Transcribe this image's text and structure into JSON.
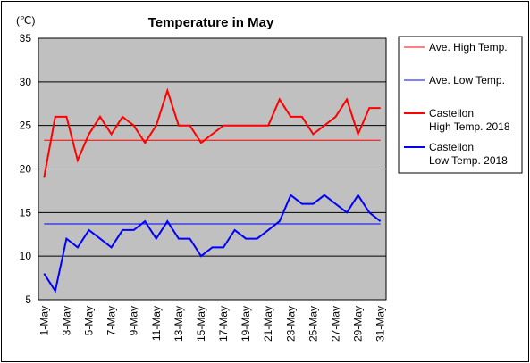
{
  "chart_data": {
    "type": "line",
    "title": "Temperature in May",
    "unit_label": "(℃)",
    "ylim": [
      5,
      35
    ],
    "yticks": [
      5,
      10,
      15,
      20,
      25,
      30,
      35
    ],
    "grid": true,
    "background_color": "#c0c0c0",
    "x": [
      "1-May",
      "2-May",
      "3-May",
      "4-May",
      "5-May",
      "6-May",
      "7-May",
      "8-May",
      "9-May",
      "10-May",
      "11-May",
      "12-May",
      "13-May",
      "14-May",
      "15-May",
      "16-May",
      "17-May",
      "18-May",
      "19-May",
      "20-May",
      "21-May",
      "22-May",
      "23-May",
      "24-May",
      "25-May",
      "26-May",
      "27-May",
      "28-May",
      "29-May",
      "30-May",
      "31-May"
    ],
    "xtick_labels": [
      "1-May",
      "3-May",
      "5-May",
      "7-May",
      "9-May",
      "11-May",
      "13-May",
      "15-May",
      "17-May",
      "19-May",
      "21-May",
      "23-May",
      "25-May",
      "27-May",
      "29-May",
      "31-May"
    ],
    "series": [
      {
        "name": "Ave. High Temp.",
        "color": "#ff0000",
        "width": 1,
        "values": [
          23.3,
          23.3,
          23.3,
          23.3,
          23.3,
          23.3,
          23.3,
          23.3,
          23.3,
          23.3,
          23.3,
          23.3,
          23.3,
          23.3,
          23.3,
          23.3,
          23.3,
          23.3,
          23.3,
          23.3,
          23.3,
          23.3,
          23.3,
          23.3,
          23.3,
          23.3,
          23.3,
          23.3,
          23.3,
          23.3,
          23.3
        ]
      },
      {
        "name": "Ave. Low Temp.",
        "color": "#0000ff",
        "width": 1,
        "values": [
          13.7,
          13.7,
          13.7,
          13.7,
          13.7,
          13.7,
          13.7,
          13.7,
          13.7,
          13.7,
          13.7,
          13.7,
          13.7,
          13.7,
          13.7,
          13.7,
          13.7,
          13.7,
          13.7,
          13.7,
          13.7,
          13.7,
          13.7,
          13.7,
          13.7,
          13.7,
          13.7,
          13.7,
          13.7,
          13.7,
          13.7
        ]
      },
      {
        "name": "Castellon High Temp. 2018",
        "name_lines": [
          "Castellon",
          "High Temp. 2018"
        ],
        "color": "#ff0000",
        "width": 2,
        "values": [
          19,
          26,
          26,
          21,
          24,
          26,
          24,
          26,
          25,
          23,
          25,
          29,
          25,
          25,
          23,
          24,
          25,
          25,
          25,
          25,
          25,
          28,
          26,
          26,
          24,
          25,
          26,
          28,
          24,
          27,
          27
        ]
      },
      {
        "name": "Castellon Low Temp. 2018",
        "name_lines": [
          "Castellon",
          "Low Temp. 2018"
        ],
        "color": "#0000ff",
        "width": 2,
        "values": [
          8,
          6,
          12,
          11,
          13,
          12,
          11,
          13,
          13,
          14,
          12,
          14,
          12,
          12,
          10,
          11,
          11,
          13,
          12,
          12,
          13,
          14,
          17,
          16,
          16,
          17,
          16,
          15,
          17,
          15,
          14
        ]
      }
    ]
  }
}
